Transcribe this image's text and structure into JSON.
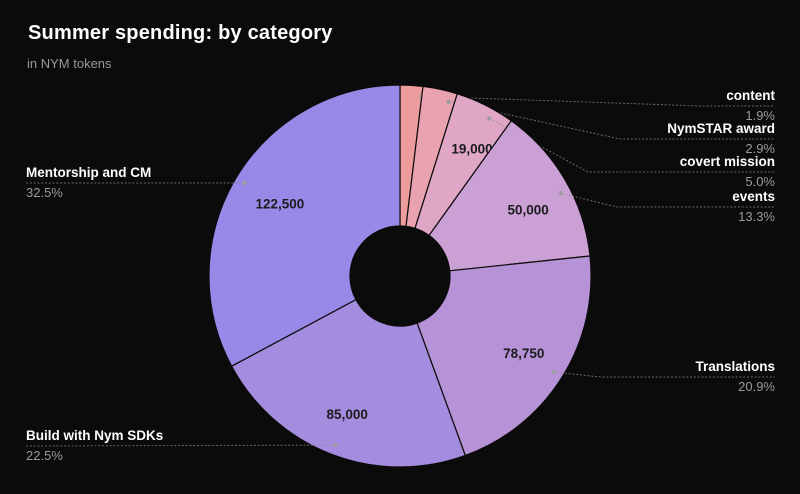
{
  "header": {
    "title": "Summer spending: by category",
    "subtitle": "in NYM tokens"
  },
  "chart_data": {
    "type": "pie",
    "variant": "donut",
    "title": "Summer spending: by category",
    "subtitle": "in NYM tokens",
    "units": "NYM tokens",
    "start_angle_deg": 0,
    "direction": "clockwise",
    "slices": [
      {
        "label": "content",
        "percent": 1.9,
        "percent_label": "1.9%",
        "value": null,
        "value_label": "",
        "color": "#ED9C9D"
      },
      {
        "label": "NymSTAR award",
        "percent": 2.9,
        "percent_label": "2.9%",
        "value": null,
        "value_label": "",
        "color": "#E9A2B0"
      },
      {
        "label": "covert mission",
        "percent": 5.0,
        "percent_label": "5.0%",
        "value": 19000,
        "value_label": "19,000",
        "color": "#DFA6C6"
      },
      {
        "label": "events",
        "percent": 13.3,
        "percent_label": "13.3%",
        "value": 50000,
        "value_label": "50,000",
        "color": "#CBA0D5"
      },
      {
        "label": "Translations",
        "percent": 20.9,
        "percent_label": "20.9%",
        "value": 78750,
        "value_label": "78,750",
        "color": "#B692D6"
      },
      {
        "label": "Build with Nym SDKs",
        "percent": 22.5,
        "percent_label": "22.5%",
        "value": 85000,
        "value_label": "85,000",
        "color": "#A48CDE"
      },
      {
        "label": "Mentorship and CM",
        "percent": 32.5,
        "percent_label": "32.5%",
        "value": 122500,
        "value_label": "122,500",
        "color": "#9889E9"
      }
    ],
    "colors": {
      "background": "#0c0b0b",
      "title_text": "#ffffff",
      "secondary_text": "#9a9a9a",
      "value_text": "#1c1b1e",
      "leader_line": "#8a8a8a"
    }
  }
}
